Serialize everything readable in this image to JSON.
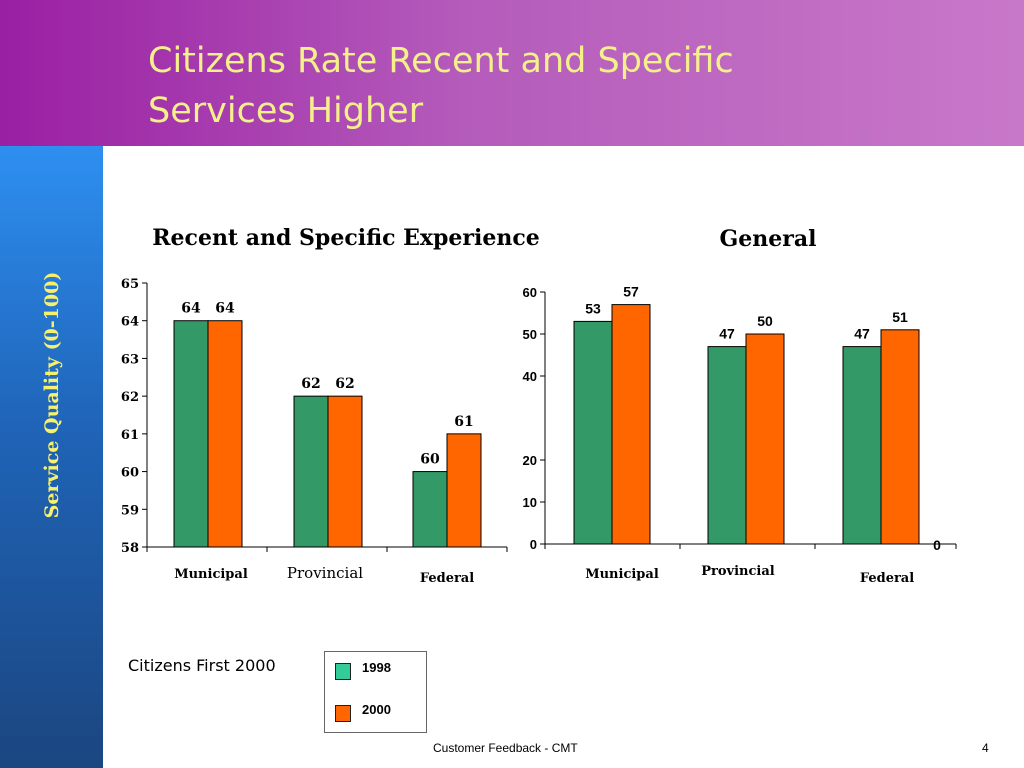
{
  "slide": {
    "title_line1": "Citizens Rate Recent and Specific",
    "title_line2": "Services Higher",
    "sidebar_label": "Service Quality (0-100)",
    "note": "Citizens First 2000",
    "footer": "Customer Feedback - CMT",
    "page_number": "4"
  },
  "colors": {
    "header": "#b45bbb",
    "title_text": "#f4f08a",
    "sidebar": "#1f64b8",
    "sidebar_text": "#f6f06f",
    "1998": "#339966",
    "2000": "#ff6600",
    "legend_1998": "#33cc99"
  },
  "legend": [
    {
      "label": "1998",
      "color": "#33cc99"
    },
    {
      "label": "2000",
      "color": "#ff6600"
    }
  ],
  "chart_data": [
    {
      "type": "bar",
      "title": "Recent and Specific Experience",
      "categories": [
        "Municipal",
        "Provincial",
        "Federal"
      ],
      "series": [
        {
          "name": "1998",
          "values": [
            64,
            62,
            60
          ]
        },
        {
          "name": "2000",
          "values": [
            64,
            62,
            61
          ]
        }
      ],
      "ylim": [
        58,
        65
      ],
      "yticks": [
        58,
        59,
        60,
        61,
        62,
        63,
        64,
        65
      ],
      "xlabel": "",
      "ylabel": ""
    },
    {
      "type": "bar",
      "title": "General",
      "categories": [
        "Municipal",
        "Provincial",
        "Federal"
      ],
      "series": [
        {
          "name": "1998",
          "values": [
            53,
            47,
            47
          ]
        },
        {
          "name": "2000",
          "values": [
            57,
            50,
            51
          ]
        }
      ],
      "ylim": [
        0,
        60
      ],
      "yticks": [
        0,
        10,
        20,
        40,
        50,
        60
      ],
      "extra_label": "0",
      "xlabel": "",
      "ylabel": ""
    }
  ]
}
